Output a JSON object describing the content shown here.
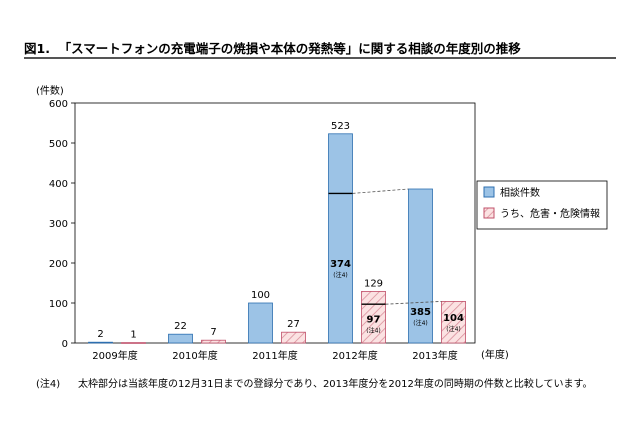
{
  "page": {
    "title_prefix": "図1.",
    "title_text": "「スマートフォンの充電端子の焼損や本体の発熱等」に関する相談の年度別の推移",
    "footnote_tag": "(注4)",
    "footnote_text": "太枠部分は当該年度の12月31日までの登録分であり、2013年度分を2012年度の同時期の件数と比較しています。"
  },
  "chart_data": {
    "type": "bar",
    "title": "図1. 「スマートフォンの充電端子の焼損や本体の発熱等」に関する相談の年度別の推移",
    "ylabel": "(件数)",
    "xlabel": "(年度)",
    "ylim": [
      0,
      600
    ],
    "yticks": [
      "0",
      "100",
      "200",
      "300",
      "400",
      "500",
      "600"
    ],
    "categories": [
      "2009年度",
      "2010年度",
      "2011年度",
      "2012年度",
      "2013年度"
    ],
    "series": [
      {
        "name": "相談件数",
        "color": "#9cc3e6",
        "values": [
          2,
          22,
          100,
          523,
          385
        ],
        "labels": [
          "2",
          "22",
          "100",
          "523",
          "385"
        ]
      },
      {
        "name": "うち、危害・危険情報",
        "color": "#f2c6c6",
        "values": [
          1,
          7,
          27,
          129,
          104
        ],
        "labels": [
          "1",
          "7",
          "27",
          "129",
          "104"
        ]
      }
    ],
    "partial_values": {
      "series_0": {
        "category": "2012年度",
        "value": 374,
        "label": "374",
        "note": "(注4)"
      },
      "series_1": {
        "category": "2012年度",
        "value": 97,
        "label": "97",
        "note": "(注4)"
      }
    },
    "partial_notes": {
      "series_0_2013": "(注4)",
      "series_1_2013": "(注4)"
    }
  }
}
